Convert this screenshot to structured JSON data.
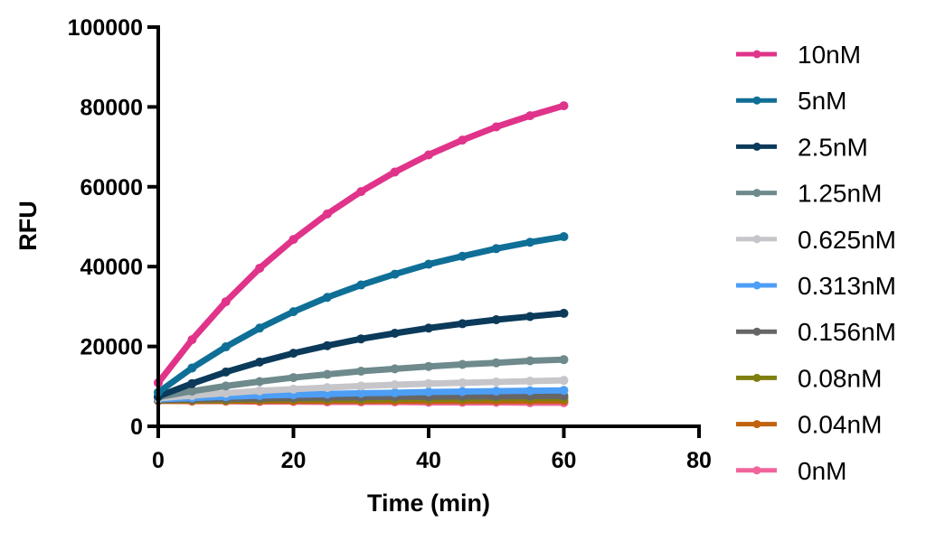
{
  "chart_data": {
    "type": "line",
    "title": "",
    "xlabel": "Time (min)",
    "ylabel": "RFU",
    "xlim": [
      0,
      80
    ],
    "ylim": [
      0,
      100000
    ],
    "xticks": [
      0,
      20,
      40,
      60,
      80
    ],
    "yticks": [
      0,
      20000,
      40000,
      60000,
      80000,
      100000
    ],
    "grid": false,
    "legend_position": "right",
    "x": [
      0,
      5,
      10,
      15,
      20,
      25,
      30,
      35,
      40,
      45,
      50,
      55,
      60
    ],
    "series": [
      {
        "name": "10nM",
        "color": "#e0338a",
        "values": [
          10900,
          21700,
          31200,
          39600,
          46800,
          53200,
          58800,
          63700,
          68000,
          71700,
          75000,
          77800,
          80300
        ]
      },
      {
        "name": "5nM",
        "color": "#0f6f96",
        "values": [
          8500,
          14600,
          19900,
          24600,
          28700,
          32300,
          35400,
          38100,
          40600,
          42600,
          44500,
          46100,
          47500
        ]
      },
      {
        "name": "2.5nM",
        "color": "#0b3a5a",
        "values": [
          7500,
          10700,
          13600,
          16100,
          18300,
          20200,
          21900,
          23300,
          24600,
          25700,
          26700,
          27500,
          28300
        ]
      },
      {
        "name": "1.25nM",
        "color": "#6e8a8c",
        "values": [
          7300,
          8800,
          10100,
          11200,
          12200,
          13000,
          13800,
          14400,
          15000,
          15500,
          15900,
          16400,
          16700
        ]
      },
      {
        "name": "0.625nM",
        "color": "#c6c6ca",
        "values": [
          7000,
          7700,
          8300,
          8900,
          9300,
          9700,
          10100,
          10400,
          10700,
          10900,
          11100,
          11300,
          11500
        ]
      },
      {
        "name": "0.313nM",
        "color": "#4d9ef5",
        "values": [
          6800,
          7100,
          7400,
          7700,
          7900,
          8100,
          8300,
          8400,
          8600,
          8700,
          8800,
          8900,
          9000
        ]
      },
      {
        "name": "0.156nM",
        "color": "#666666",
        "values": [
          6600,
          6800,
          6900,
          7000,
          7100,
          7200,
          7300,
          7400,
          7400,
          7500,
          7500,
          7600,
          7600
        ]
      },
      {
        "name": "0.08nM",
        "color": "#7f7f10",
        "values": [
          6500,
          6600,
          6600,
          6700,
          6800,
          6800,
          6800,
          6900,
          6900,
          6900,
          7000,
          7000,
          7000
        ]
      },
      {
        "name": "0.04nM",
        "color": "#c0620e",
        "values": [
          6400,
          6400,
          6400,
          6400,
          6400,
          6400,
          6400,
          6400,
          6400,
          6400,
          6400,
          6400,
          6400
        ]
      },
      {
        "name": "0nM",
        "color": "#f0649a",
        "values": [
          6400,
          6300,
          6300,
          6200,
          6200,
          6100,
          6100,
          6100,
          6000,
          6000,
          6000,
          5900,
          5900
        ]
      }
    ]
  }
}
